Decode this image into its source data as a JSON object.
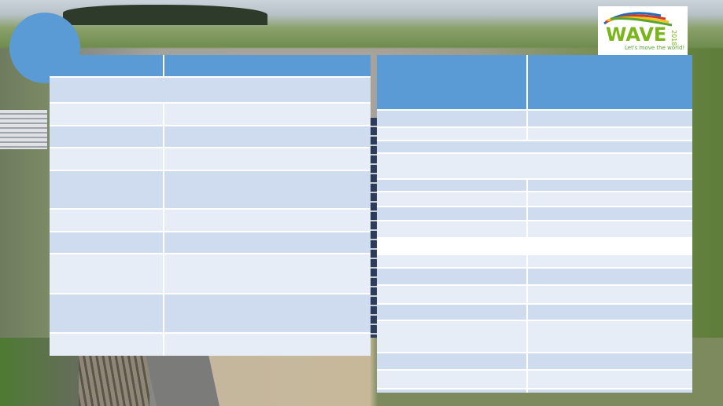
{
  "logo": {
    "word": "WAVE",
    "year": "2018",
    "tagline": "Let's move the world!",
    "colors": {
      "word": "#7ab51d",
      "swirl_blue": "#1e6fb8",
      "swirl_red": "#d23a2a",
      "swirl_yellow": "#f2c11b",
      "swirl_green": "#5aa530"
    }
  },
  "colors": {
    "header": "#5b9bd5",
    "row_dark": "#cfdcef",
    "row_light": "#e7edf6",
    "circle": "#5b9bd5"
  },
  "left_table": {
    "header": [
      "",
      ""
    ],
    "rows": [
      {
        "style": "dark",
        "merged": true,
        "cells": [
          ""
        ]
      },
      {
        "style": "light",
        "cells": [
          "",
          ""
        ]
      },
      {
        "style": "dark",
        "cells": [
          "",
          ""
        ]
      },
      {
        "style": "light",
        "cells": [
          "",
          ""
        ]
      },
      {
        "style": "dark",
        "cells": [
          "",
          ""
        ]
      },
      {
        "style": "light",
        "cells": [
          "",
          ""
        ]
      },
      {
        "style": "dark",
        "cells": [
          "",
          ""
        ]
      },
      {
        "style": "light",
        "cells": [
          "",
          ""
        ]
      },
      {
        "style": "dark",
        "cells": [
          "",
          ""
        ]
      },
      {
        "style": "light",
        "cells": [
          "",
          ""
        ]
      }
    ]
  },
  "right_table": {
    "header": [
      "",
      ""
    ],
    "rows": [
      {
        "style": "dark",
        "cells": [
          "",
          ""
        ]
      },
      {
        "style": "light",
        "cells": [
          "",
          ""
        ]
      },
      {
        "style": "dark",
        "merged": true,
        "cells": [
          ""
        ]
      },
      {
        "style": "light",
        "merged": true,
        "cells": [
          ""
        ]
      },
      {
        "style": "dark",
        "cells": [
          "",
          ""
        ]
      },
      {
        "style": "light",
        "cells": [
          "",
          ""
        ]
      },
      {
        "style": "dark",
        "cells": [
          "",
          ""
        ]
      },
      {
        "style": "light",
        "cells": [
          "",
          ""
        ]
      },
      {
        "style": "white",
        "merged": true,
        "cells": [
          ""
        ]
      },
      {
        "style": "light",
        "cells": [
          "",
          ""
        ]
      },
      {
        "style": "dark",
        "cells": [
          "",
          ""
        ]
      },
      {
        "style": "light",
        "cells": [
          "",
          ""
        ]
      },
      {
        "style": "dark",
        "cells": [
          "",
          ""
        ]
      },
      {
        "style": "light",
        "cells": [
          "",
          ""
        ]
      },
      {
        "style": "dark",
        "cells": [
          "",
          ""
        ]
      },
      {
        "style": "light",
        "cells": [
          "",
          ""
        ]
      },
      {
        "style": "dark",
        "cells": [
          "",
          ""
        ]
      }
    ]
  }
}
